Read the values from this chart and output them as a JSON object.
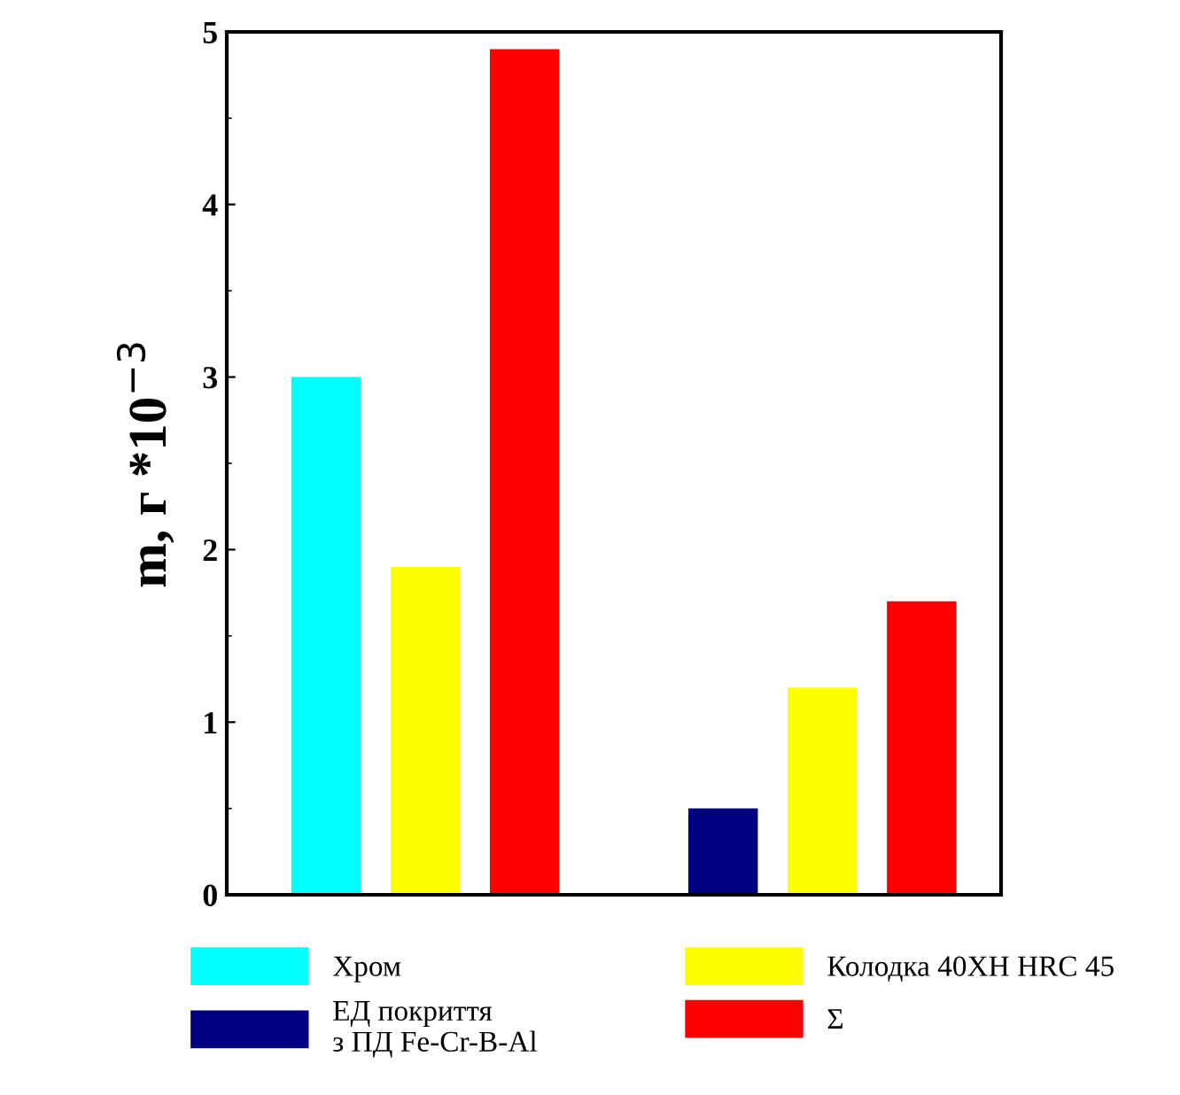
{
  "chart_data": {
    "type": "bar",
    "ylabel": "m, г *10$^{−3}$",
    "categories": [
      null,
      null,
      null,
      null,
      null,
      null,
      null
    ],
    "series": [
      {
        "name": "Хром",
        "color": "#00ffff",
        "values": [
          3.0,
          null,
          null,
          null,
          null,
          null,
          null
        ]
      },
      {
        "name": "ЕД покриття\nз ПД Fe-Cr-B-Al",
        "color": "#000080",
        "values": [
          null,
          null,
          null,
          null,
          0.5,
          null,
          null
        ]
      },
      {
        "name": "Колодка 40ХН HRC 45",
        "color": "#ffff00",
        "values": [
          null,
          1.9,
          null,
          null,
          null,
          1.2,
          null
        ]
      },
      {
        "name": "Σ",
        "color": "#ff0000",
        "values": [
          null,
          null,
          4.9,
          null,
          null,
          null,
          1.7
        ]
      }
    ],
    "ylim": [
      0,
      5
    ],
    "yticks": [
      0,
      1,
      2,
      3,
      4,
      5
    ],
    "tick_labels": "y",
    "legend": "bottom",
    "grid": false
  }
}
